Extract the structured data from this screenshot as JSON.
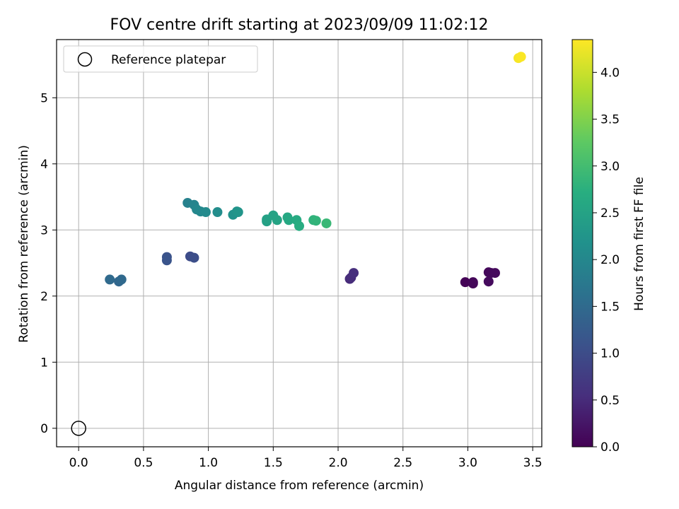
{
  "chart_data": {
    "type": "scatter",
    "title": "FOV centre drift starting at 2023/09/09 11:02:12",
    "xlabel": "Angular distance from reference (arcmin)",
    "ylabel": "Rotation from reference (arcmin)",
    "xlim": [
      -0.17,
      3.57
    ],
    "ylim": [
      -0.28,
      5.88
    ],
    "x_ticks": [
      0.0,
      0.5,
      1.0,
      1.5,
      2.0,
      2.5,
      3.0,
      3.5
    ],
    "x_tick_labels": [
      "0.0",
      "0.5",
      "1.0",
      "1.5",
      "2.0",
      "2.5",
      "3.0",
      "3.5"
    ],
    "y_ticks": [
      0,
      1,
      2,
      3,
      4,
      5
    ],
    "y_tick_labels": [
      "0",
      "1",
      "2",
      "3",
      "4",
      "5"
    ],
    "grid": true,
    "legend": {
      "placement": "top-left",
      "entries": [
        "Reference platepar"
      ]
    },
    "colorbar": {
      "label": "Hours from first FF file",
      "range": [
        0.0,
        4.35
      ],
      "ticks": [
        0.0,
        0.5,
        1.0,
        1.5,
        2.0,
        2.5,
        3.0,
        3.5,
        4.0
      ],
      "tick_labels": [
        "0.0",
        "0.5",
        "1.0",
        "1.5",
        "2.0",
        "2.5",
        "3.0",
        "3.5",
        "4.0"
      ],
      "colormap": "viridis"
    },
    "reference_point": {
      "x": 0.0,
      "y": 0.0
    },
    "points": [
      {
        "x": 2.98,
        "y": 2.21,
        "hours": 0.02
      },
      {
        "x": 3.04,
        "y": 2.19,
        "hours": 0.05
      },
      {
        "x": 3.04,
        "y": 2.21,
        "hours": 0.07
      },
      {
        "x": 3.16,
        "y": 2.36,
        "hours": 0.08
      },
      {
        "x": 3.18,
        "y": 2.35,
        "hours": 0.09
      },
      {
        "x": 3.21,
        "y": 2.35,
        "hours": 0.1
      },
      {
        "x": 3.16,
        "y": 2.22,
        "hours": 0.12
      },
      {
        "x": 2.09,
        "y": 2.26,
        "hours": 0.5
      },
      {
        "x": 2.1,
        "y": 2.28,
        "hours": 0.52
      },
      {
        "x": 2.12,
        "y": 2.35,
        "hours": 0.55
      },
      {
        "x": 0.86,
        "y": 2.6,
        "hours": 1.0
      },
      {
        "x": 0.89,
        "y": 2.58,
        "hours": 1.02
      },
      {
        "x": 0.68,
        "y": 2.59,
        "hours": 1.1
      },
      {
        "x": 0.68,
        "y": 2.54,
        "hours": 1.12
      },
      {
        "x": 0.31,
        "y": 2.22,
        "hours": 1.45
      },
      {
        "x": 0.33,
        "y": 2.25,
        "hours": 1.47
      },
      {
        "x": 0.24,
        "y": 2.25,
        "hours": 1.5
      },
      {
        "x": 0.84,
        "y": 3.41,
        "hours": 1.9
      },
      {
        "x": 0.89,
        "y": 3.38,
        "hours": 1.95
      },
      {
        "x": 0.91,
        "y": 3.31,
        "hours": 2.0
      },
      {
        "x": 0.94,
        "y": 3.28,
        "hours": 2.02
      },
      {
        "x": 0.98,
        "y": 3.27,
        "hours": 2.05
      },
      {
        "x": 1.07,
        "y": 3.27,
        "hours": 2.1
      },
      {
        "x": 1.19,
        "y": 3.23,
        "hours": 2.2
      },
      {
        "x": 1.22,
        "y": 3.28,
        "hours": 2.22
      },
      {
        "x": 1.23,
        "y": 3.27,
        "hours": 2.25
      },
      {
        "x": 1.45,
        "y": 3.13,
        "hours": 2.45
      },
      {
        "x": 1.45,
        "y": 3.16,
        "hours": 2.47
      },
      {
        "x": 1.5,
        "y": 3.22,
        "hours": 2.5
      },
      {
        "x": 1.53,
        "y": 3.15,
        "hours": 2.52
      },
      {
        "x": 1.61,
        "y": 3.19,
        "hours": 2.58
      },
      {
        "x": 1.62,
        "y": 3.15,
        "hours": 2.6
      },
      {
        "x": 1.68,
        "y": 3.15,
        "hours": 2.65
      },
      {
        "x": 1.7,
        "y": 3.06,
        "hours": 2.68
      },
      {
        "x": 1.81,
        "y": 3.15,
        "hours": 2.8
      },
      {
        "x": 1.83,
        "y": 3.14,
        "hours": 2.82
      },
      {
        "x": 1.91,
        "y": 3.1,
        "hours": 2.9
      },
      {
        "x": 3.39,
        "y": 5.6,
        "hours": 4.3
      },
      {
        "x": 3.41,
        "y": 5.62,
        "hours": 4.33
      }
    ]
  }
}
